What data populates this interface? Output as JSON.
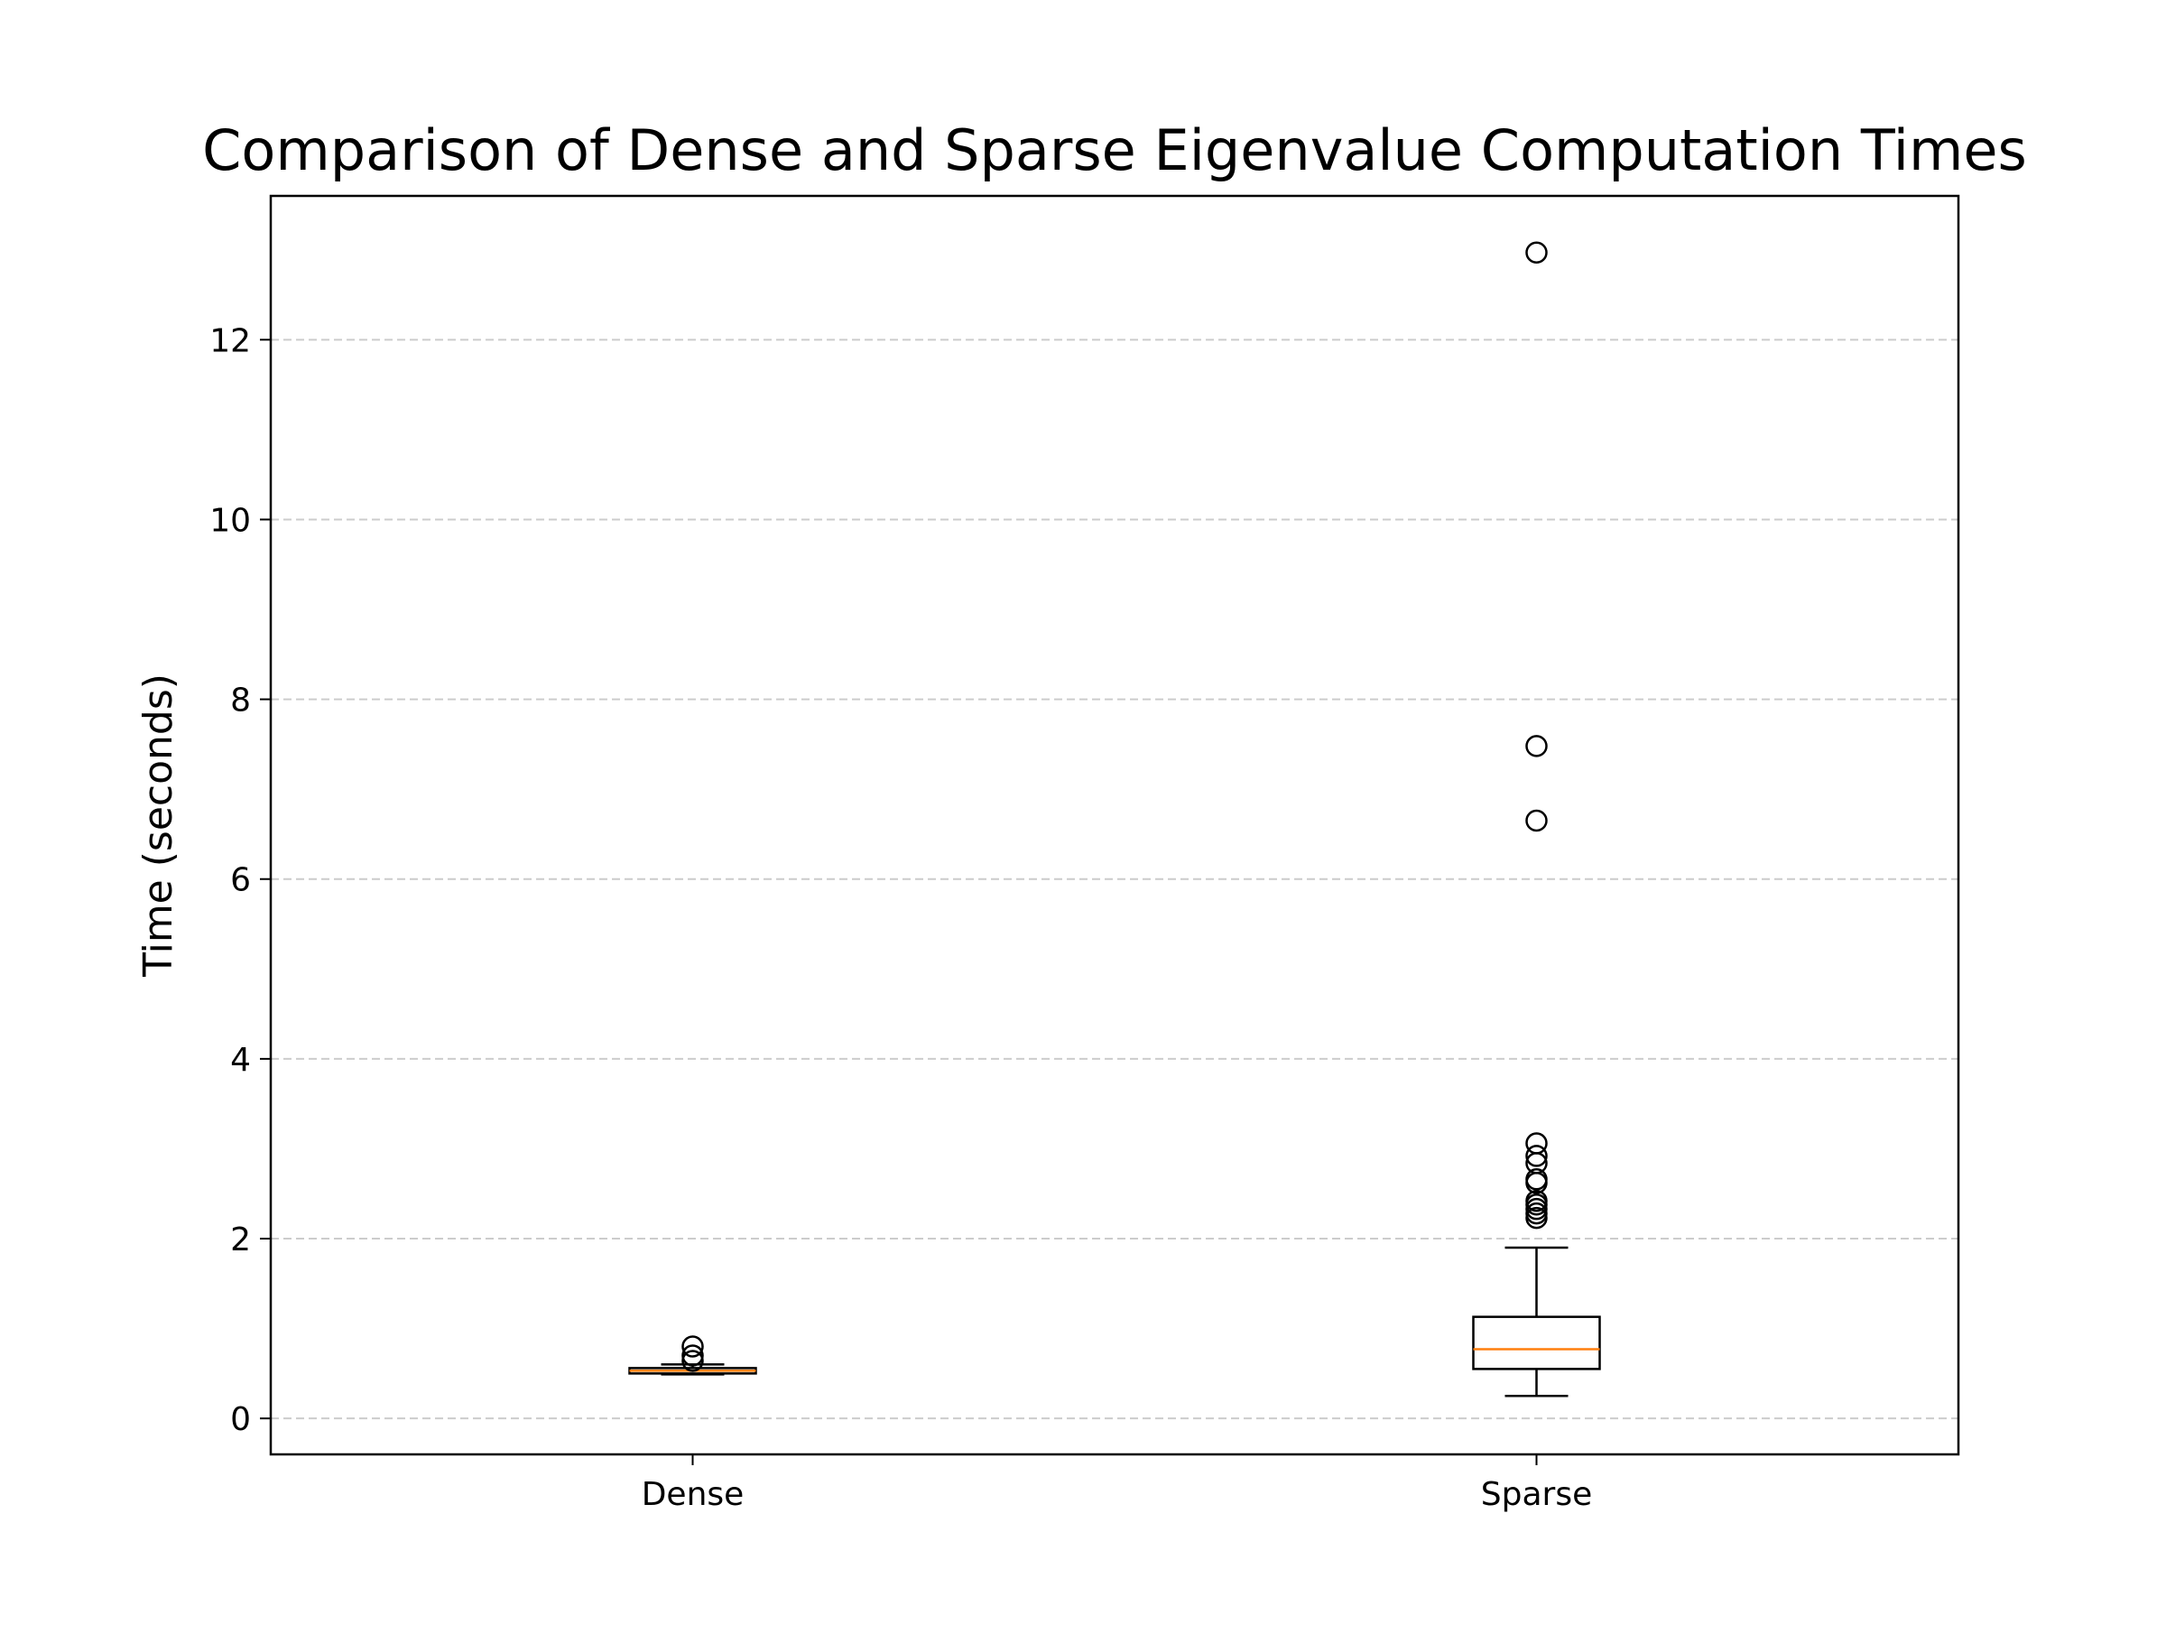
{
  "chart_data": {
    "type": "box",
    "title": "Comparison of Dense and Sparse Eigenvalue Computation Times",
    "xlabel": "",
    "ylabel": "Time (seconds)",
    "categories": [
      "Dense",
      "Sparse"
    ],
    "ylim": [
      -0.4,
      13.6
    ],
    "yticks": [
      0,
      2,
      4,
      6,
      8,
      10,
      12
    ],
    "grid": {
      "axis": "y",
      "style": "dashed",
      "color": "#cccccc"
    },
    "median_color": "#ff7f0e",
    "box_color": "#000000",
    "boxes": [
      {
        "name": "Dense",
        "whisker_low": 0.49,
        "q1": 0.5,
        "median": 0.53,
        "q3": 0.56,
        "whisker_high": 0.6,
        "outliers": [
          0.64,
          0.7,
          0.8
        ]
      },
      {
        "name": "Sparse",
        "whisker_low": 0.25,
        "q1": 0.55,
        "median": 0.77,
        "q3": 1.13,
        "whisker_high": 1.9,
        "outliers": [
          2.23,
          2.28,
          2.33,
          2.38,
          2.42,
          2.62,
          2.66,
          2.84,
          2.92,
          3.06,
          6.65,
          7.48,
          12.97
        ]
      }
    ]
  }
}
